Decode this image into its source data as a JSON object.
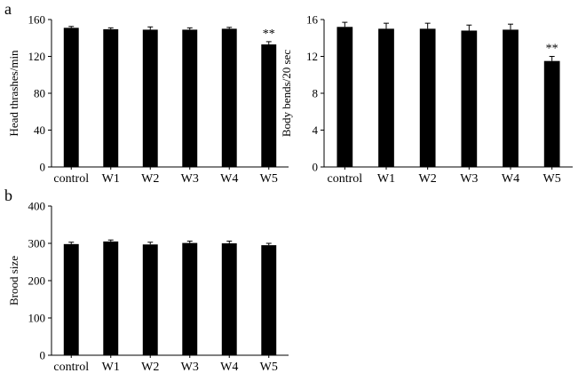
{
  "figure": {
    "panel_letters": [
      "a",
      "b"
    ]
  },
  "chart_data": [
    {
      "type": "bar",
      "panel": "a",
      "title": "",
      "xlabel": "",
      "ylabel": "Head thrashes/min",
      "categories": [
        "control",
        "W1",
        "W2",
        "W3",
        "W4",
        "W5"
      ],
      "values": [
        151,
        149.5,
        149,
        149,
        150,
        133
      ],
      "errors": [
        1.5,
        1.5,
        3,
        2,
        1.5,
        3
      ],
      "significance": [
        "",
        "",
        "",
        "",
        "",
        "**"
      ],
      "ylim": [
        0,
        160
      ],
      "yticks": [
        0,
        40,
        80,
        120,
        160
      ],
      "ytick_labels": [
        "0",
        "40",
        "80",
        "120",
        "160"
      ],
      "grid": false,
      "bar_color": "#000000"
    },
    {
      "type": "bar",
      "panel": "a",
      "title": "",
      "xlabel": "",
      "ylabel": "Body bends/20 sec",
      "categories": [
        "control",
        "W1",
        "W2",
        "W3",
        "W4",
        "W5"
      ],
      "values": [
        15.2,
        15.0,
        15.0,
        14.8,
        14.9,
        11.5
      ],
      "errors": [
        0.5,
        0.6,
        0.6,
        0.6,
        0.6,
        0.5
      ],
      "significance": [
        "",
        "",
        "",
        "",
        "",
        "**"
      ],
      "ylim": [
        0,
        16
      ],
      "yticks": [
        0,
        4,
        8,
        12,
        16
      ],
      "ytick_labels": [
        "0",
        "4",
        "8",
        "12",
        "16"
      ],
      "grid": false,
      "bar_color": "#000000"
    },
    {
      "type": "bar",
      "panel": "b",
      "title": "",
      "xlabel": "",
      "ylabel": "Brood size",
      "categories": [
        "control",
        "W1",
        "W2",
        "W3",
        "W4",
        "W5"
      ],
      "values": [
        298,
        305,
        297,
        301,
        300,
        295
      ],
      "errors": [
        5,
        4,
        6,
        5,
        6,
        5
      ],
      "significance": [
        "",
        "",
        "",
        "",
        "",
        ""
      ],
      "ylim": [
        0,
        400
      ],
      "yticks": [
        0,
        100,
        200,
        300,
        400
      ],
      "ytick_labels": [
        "0",
        "100",
        "200",
        "300",
        "400"
      ],
      "grid": false,
      "bar_color": "#000000"
    }
  ]
}
